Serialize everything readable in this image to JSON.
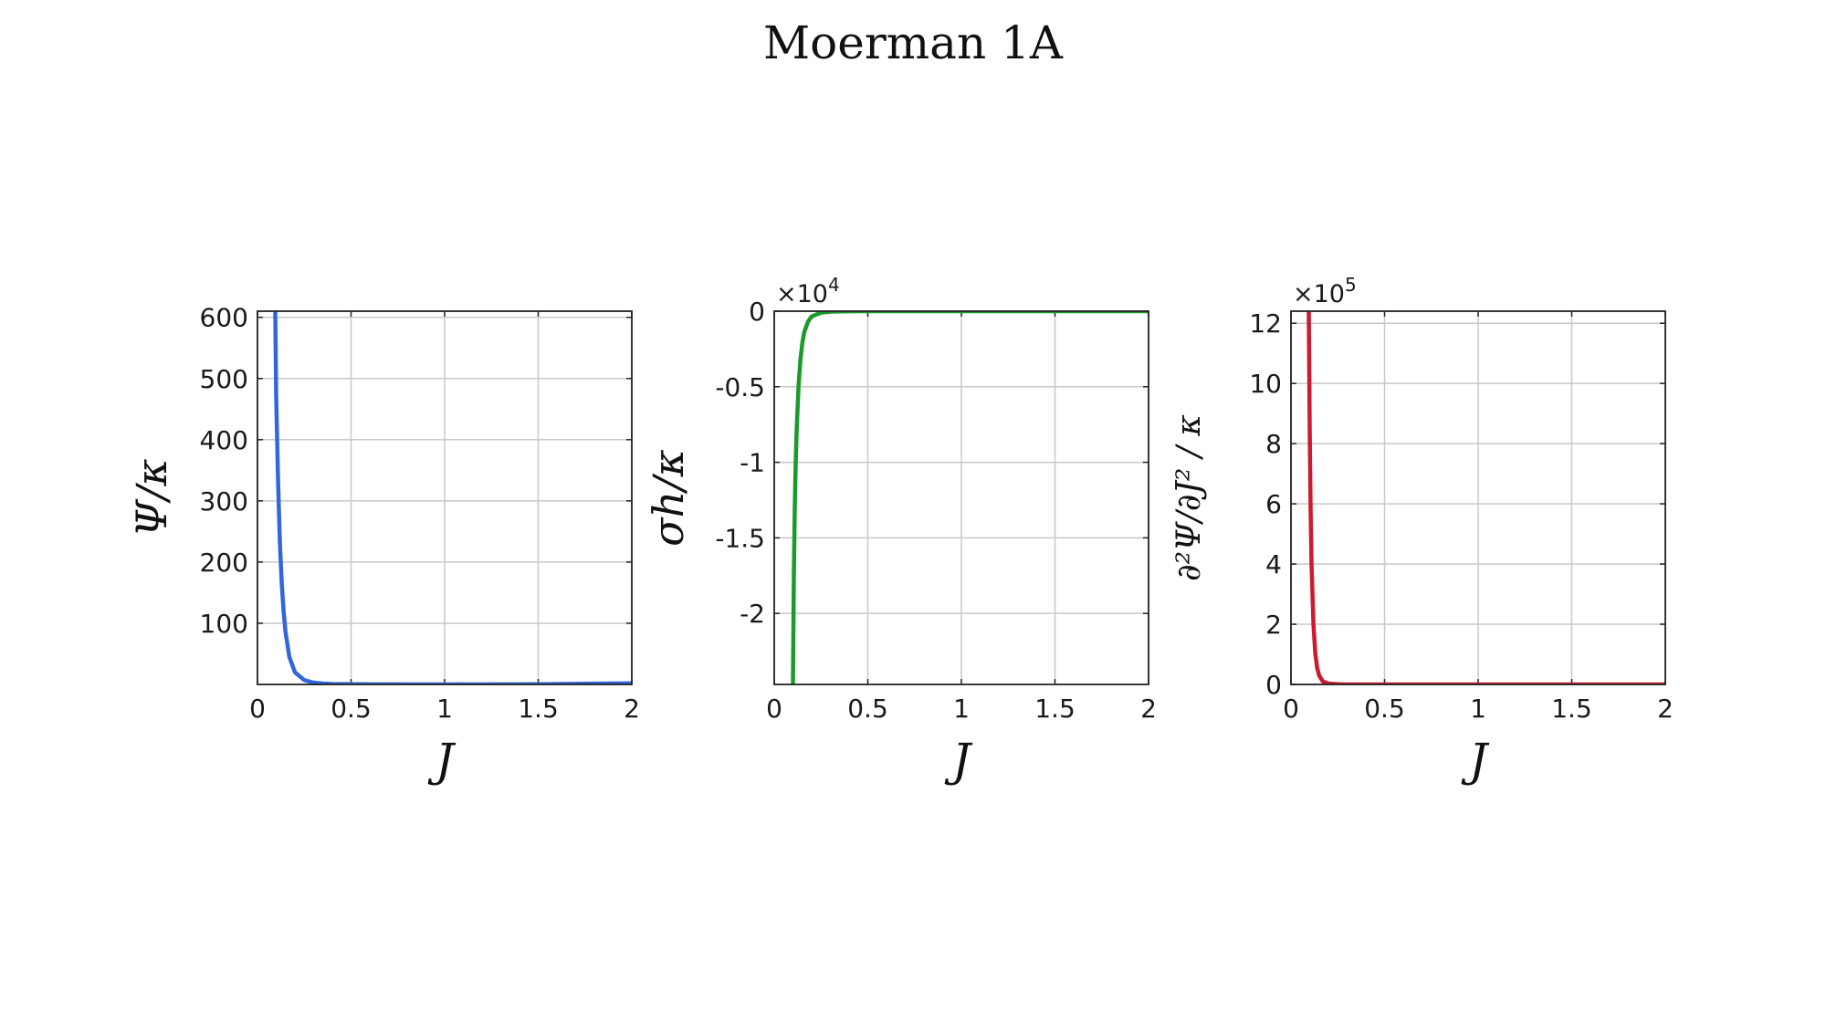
{
  "title": "Moerman 1A",
  "chart_data": [
    {
      "type": "line",
      "name": "psi",
      "xlabel": "J",
      "ylabel": "Ψ/κ",
      "xlim": [
        0,
        2
      ],
      "ylim": [
        0,
        610
      ],
      "xticks": [
        0,
        0.5,
        1,
        1.5,
        2
      ],
      "xtick_labels": [
        "0",
        "0.5",
        "1",
        "1.5",
        "2"
      ],
      "yticks": [
        100,
        200,
        300,
        400,
        500,
        600
      ],
      "ytick_labels": [
        "100",
        "200",
        "300",
        "400",
        "500",
        "600"
      ],
      "multiplier": "",
      "grid": true,
      "color": "#3366dd",
      "series": [
        {
          "x": [
            0.095,
            0.1,
            0.11,
            0.12,
            0.13,
            0.14,
            0.15,
            0.17,
            0.2,
            0.25,
            0.3,
            0.35,
            0.4,
            0.5,
            0.7,
            1.0,
            1.5,
            2.0
          ],
          "y": [
            610,
            470,
            330,
            230,
            165,
            118,
            85,
            45,
            20,
            7,
            3,
            1.5,
            0.8,
            0.4,
            0.1,
            0,
            0.5,
            2
          ]
        }
      ]
    },
    {
      "type": "line",
      "name": "sigma",
      "xlabel": "J",
      "ylabel": "σh/κ",
      "xlim": [
        0,
        2
      ],
      "ylim": [
        -2.47,
        0
      ],
      "xticks": [
        0,
        0.5,
        1,
        1.5,
        2
      ],
      "xtick_labels": [
        "0",
        "0.5",
        "1",
        "1.5",
        "2"
      ],
      "yticks": [
        0,
        -0.5,
        -1,
        -1.5,
        -2
      ],
      "ytick_labels": [
        "0",
        "-0.5",
        "-1",
        "-1.5",
        "-2"
      ],
      "multiplier": "×10",
      "multiplier_exp": "4",
      "grid": true,
      "color": "#1a9a2a",
      "series": [
        {
          "x": [
            0.1,
            0.105,
            0.11,
            0.115,
            0.12,
            0.13,
            0.14,
            0.15,
            0.16,
            0.18,
            0.2,
            0.25,
            0.3,
            0.4,
            0.5,
            1.0,
            1.5,
            2.0
          ],
          "y": [
            -2.47,
            -1.75,
            -1.3,
            -0.98,
            -0.78,
            -0.5,
            -0.32,
            -0.21,
            -0.14,
            -0.07,
            -0.035,
            -0.01,
            -0.003,
            -0.0005,
            0,
            0,
            0,
            0
          ]
        }
      ]
    },
    {
      "type": "line",
      "name": "d2psi",
      "xlabel": "J",
      "ylabel": "∂²Ψ/∂J² / κ",
      "xlim": [
        0,
        2
      ],
      "ylim": [
        0,
        12.4
      ],
      "xticks": [
        0,
        0.5,
        1,
        1.5,
        2
      ],
      "xtick_labels": [
        "0",
        "0.5",
        "1",
        "1.5",
        "2"
      ],
      "yticks": [
        0,
        2,
        4,
        6,
        8,
        10,
        12
      ],
      "ytick_labels": [
        "0",
        "2",
        "4",
        "6",
        "8",
        "10",
        "12"
      ],
      "multiplier": "×10",
      "multiplier_exp": "5",
      "grid": true,
      "color": "#cc1a30",
      "series": [
        {
          "x": [
            0.095,
            0.1,
            0.105,
            0.11,
            0.12,
            0.13,
            0.14,
            0.15,
            0.17,
            0.2,
            0.25,
            0.3,
            0.5,
            1.0,
            2.0
          ],
          "y": [
            12.4,
            8.5,
            5.8,
            4.0,
            2.0,
            1.0,
            0.55,
            0.3,
            0.1,
            0.03,
            0.005,
            0,
            0,
            0,
            0
          ]
        }
      ]
    }
  ]
}
